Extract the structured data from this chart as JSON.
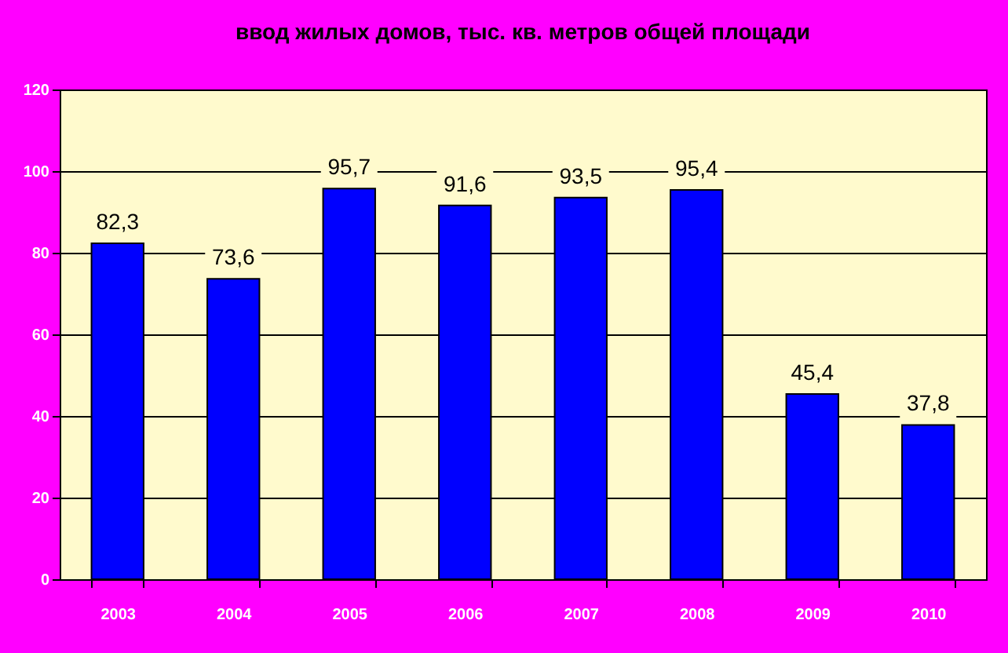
{
  "chart_data": {
    "type": "bar",
    "title": "ввод жилых домов, тыс. кв. метров общей площади",
    "categories": [
      "2003",
      "2004",
      "2005",
      "2006",
      "2007",
      "2008",
      "2009",
      "2010"
    ],
    "values": [
      82.3,
      73.6,
      95.7,
      91.6,
      93.5,
      95.4,
      45.4,
      37.8
    ],
    "value_labels": [
      "82,3",
      "73,6",
      "95,7",
      "91,6",
      "93,5",
      "95,4",
      "45,4",
      "37,8"
    ],
    "color": "#0000ff",
    "ylim": [
      0,
      120
    ],
    "yticks": [
      0,
      20,
      40,
      60,
      80,
      100,
      120
    ],
    "grid": "y"
  }
}
